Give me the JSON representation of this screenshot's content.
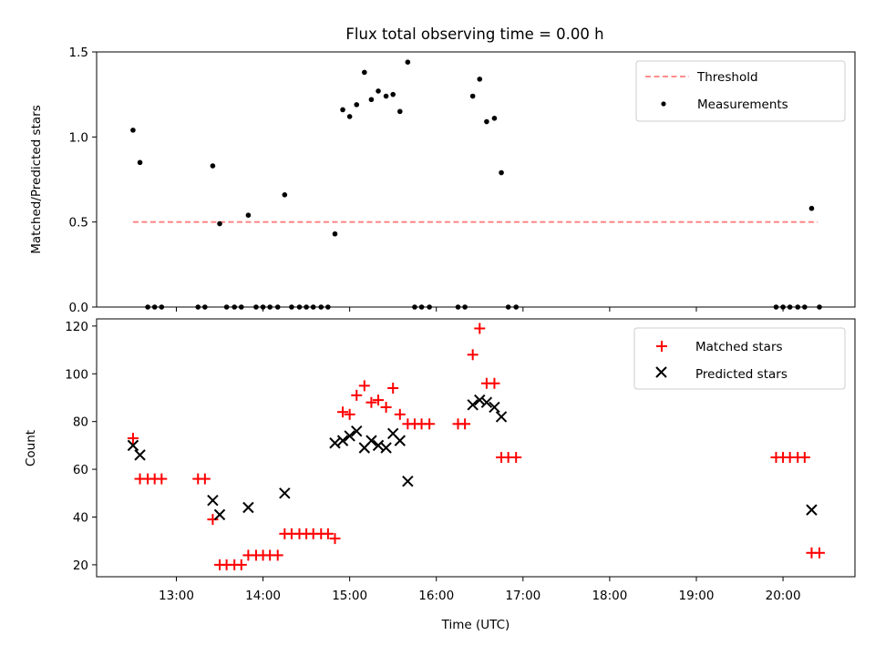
{
  "chart_data": [
    {
      "type": "scatter",
      "title": "Flux total observing time = 0.00 h",
      "xlabel": "",
      "ylabel": "Matched/Predicted stars",
      "xlim": [
        12.08,
        20.83
      ],
      "ylim": [
        0.0,
        1.5
      ],
      "yticks": [
        0.0,
        0.5,
        1.0,
        1.5
      ],
      "ytick_labels": [
        "0.0",
        "0.5",
        "1.0",
        "1.5"
      ],
      "xtick_hours": [
        13,
        14,
        15,
        16,
        17,
        18,
        19,
        20
      ],
      "legend_position": "top-right",
      "series": [
        {
          "name": "Threshold",
          "kind": "line",
          "style": "dashed",
          "color": "#ff7f7f",
          "x": [
            12.5,
            20.4
          ],
          "y": [
            0.5,
            0.5
          ]
        },
        {
          "name": "Measurements",
          "kind": "points",
          "marker": "dot",
          "color": "#000000",
          "x": [
            12.5,
            12.58,
            12.67,
            12.75,
            12.83,
            13.25,
            13.33,
            13.42,
            13.5,
            13.58,
            13.67,
            13.75,
            13.83,
            13.92,
            14.0,
            14.08,
            14.17,
            14.25,
            14.33,
            14.42,
            14.5,
            14.58,
            14.67,
            14.75,
            14.83,
            14.92,
            15.0,
            15.08,
            15.17,
            15.25,
            15.33,
            15.42,
            15.5,
            15.58,
            15.67,
            15.75,
            15.83,
            15.92,
            16.25,
            16.33,
            16.42,
            16.5,
            16.58,
            16.67,
            16.75,
            16.83,
            16.92,
            19.92,
            20.0,
            20.08,
            20.17,
            20.25,
            20.33,
            20.42
          ],
          "y": [
            1.04,
            0.85,
            0.0,
            0.0,
            0.0,
            0.0,
            0.0,
            0.83,
            0.49,
            0.0,
            0.0,
            0.0,
            0.54,
            0.0,
            0.0,
            0.0,
            0.0,
            0.66,
            0.0,
            0.0,
            0.0,
            0.0,
            0.0,
            0.0,
            0.43,
            1.16,
            1.12,
            1.19,
            1.38,
            1.22,
            1.27,
            1.24,
            1.25,
            1.15,
            1.44,
            0.0,
            0.0,
            0.0,
            0.0,
            0.0,
            1.24,
            1.34,
            1.09,
            1.11,
            0.79,
            0.0,
            0.0,
            0.0,
            0.0,
            0.0,
            0.0,
            0.0,
            0.58,
            0.0
          ]
        }
      ]
    },
    {
      "type": "scatter",
      "title": "",
      "xlabel": "Time (UTC)",
      "ylabel": "Count",
      "xlim": [
        12.08,
        20.83
      ],
      "ylim": [
        15,
        123
      ],
      "yticks": [
        20,
        40,
        60,
        80,
        100,
        120
      ],
      "ytick_labels": [
        "20",
        "40",
        "60",
        "80",
        "100",
        "120"
      ],
      "xtick_hours": [
        13,
        14,
        15,
        16,
        17,
        18,
        19,
        20
      ],
      "xtick_labels": [
        "13:00",
        "14:00",
        "15:00",
        "16:00",
        "17:00",
        "18:00",
        "19:00",
        "20:00"
      ],
      "legend_position": "top-right",
      "series": [
        {
          "name": "Matched stars",
          "kind": "points",
          "marker": "plus",
          "color": "#ff0000",
          "x": [
            12.5,
            12.58,
            12.67,
            12.75,
            12.83,
            13.25,
            13.33,
            13.42,
            13.5,
            13.58,
            13.67,
            13.75,
            13.83,
            13.92,
            14.0,
            14.08,
            14.17,
            14.25,
            14.33,
            14.42,
            14.5,
            14.58,
            14.67,
            14.75,
            14.83,
            14.92,
            15.0,
            15.08,
            15.17,
            15.25,
            15.33,
            15.42,
            15.5,
            15.58,
            15.67,
            15.75,
            15.83,
            15.92,
            16.25,
            16.33,
            16.42,
            16.5,
            16.58,
            16.67,
            16.75,
            16.83,
            16.92,
            19.92,
            20.0,
            20.08,
            20.17,
            20.25,
            20.33,
            20.42
          ],
          "y": [
            73,
            56,
            56,
            56,
            56,
            56,
            56,
            39,
            20,
            20,
            20,
            20,
            24,
            24,
            24,
            24,
            24,
            33,
            33,
            33,
            33,
            33,
            33,
            33,
            31,
            84,
            83,
            91,
            95,
            88,
            89,
            86,
            94,
            83,
            79,
            79,
            79,
            79,
            79,
            79,
            108,
            119,
            96,
            96,
            65,
            65,
            65,
            65,
            65,
            65,
            65,
            65,
            25,
            25
          ]
        },
        {
          "name": "Predicted stars",
          "kind": "points",
          "marker": "x",
          "color": "#000000",
          "x": [
            12.5,
            12.58,
            13.42,
            13.5,
            13.83,
            14.25,
            14.83,
            14.92,
            15.0,
            15.08,
            15.17,
            15.25,
            15.33,
            15.42,
            15.5,
            15.58,
            15.67,
            16.42,
            16.5,
            16.58,
            16.67,
            16.75,
            20.33
          ],
          "y": [
            70,
            66,
            47,
            41,
            44,
            50,
            71,
            72,
            74,
            76,
            69,
            72,
            70,
            69,
            75,
            72,
            55,
            87,
            89,
            88,
            86,
            82,
            43
          ]
        }
      ]
    }
  ]
}
